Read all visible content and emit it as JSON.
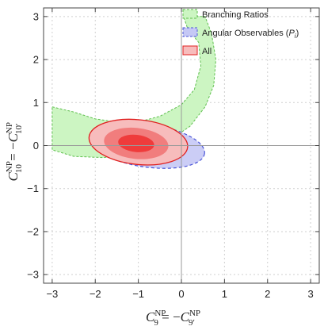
{
  "chart_data": {
    "type": "area",
    "title": "",
    "xlim": [
      -3.2,
      3.2
    ],
    "ylim": [
      -3.2,
      3.2
    ],
    "xticks": [
      -3,
      -2,
      -1,
      0,
      1,
      2,
      3
    ],
    "yticks": [
      -3,
      -2,
      -1,
      0,
      1,
      2,
      3
    ],
    "xtick_labels": [
      "−3",
      "−2",
      "−1",
      "0",
      "1",
      "2",
      "3"
    ],
    "ytick_labels": [
      "−3",
      "−2",
      "−1",
      "0",
      "1",
      "2",
      "3"
    ],
    "grid": true,
    "legend_position": "top-right",
    "xlabel": {
      "main": "C",
      "sub": "9",
      "sup": "NP",
      "eq": " = −",
      "main2": "C",
      "sub2": "9′",
      "sup2": "NP"
    },
    "ylabel": {
      "main": "C",
      "sub": "10",
      "sup": "NP",
      "eq": " = −",
      "main2": "C",
      "sub2": "10′",
      "sup2": "NP"
    },
    "series": [
      {
        "name": "Branching Ratios",
        "fill": "#ccf5c2",
        "stroke": "#5fbf4f",
        "dashed": true,
        "region": [
          [
            -3.0,
            0.9
          ],
          [
            -2.5,
            0.78
          ],
          [
            -2.0,
            0.62
          ],
          [
            -1.5,
            0.55
          ],
          [
            -1.0,
            0.55
          ],
          [
            -0.5,
            0.68
          ],
          [
            0.0,
            0.95
          ],
          [
            0.3,
            1.3
          ],
          [
            0.45,
            1.85
          ],
          [
            0.4,
            2.4
          ],
          [
            0.15,
            2.7
          ],
          [
            0.05,
            3.0
          ],
          [
            0.55,
            3.0
          ],
          [
            0.7,
            2.6
          ],
          [
            0.8,
            2.0
          ],
          [
            0.75,
            1.4
          ],
          [
            0.55,
            0.9
          ],
          [
            0.2,
            0.45
          ],
          [
            -0.3,
            0.1
          ],
          [
            -1.0,
            -0.15
          ],
          [
            -1.8,
            -0.28
          ],
          [
            -2.5,
            -0.25
          ],
          [
            -3.0,
            -0.1
          ]
        ]
      },
      {
        "name": "Angular Observables (P_i)",
        "legend_main": "Angular Observables (",
        "legend_italic": "P",
        "legend_sub": "i",
        "legend_close": ")",
        "fill": "#c5c8f5",
        "stroke": "#4b55d8",
        "dashed": true,
        "ellipse": {
          "cx": -0.8,
          "cy": 0.0,
          "rx": 1.35,
          "ry": 0.5,
          "angle": -8
        }
      },
      {
        "name": "All",
        "fill": "#f5b3b3",
        "stroke": "#e02020",
        "dashed": false,
        "contours": [
          {
            "cx": -1.0,
            "cy": 0.08,
            "rx": 1.15,
            "ry": 0.52,
            "angle": -6,
            "fill": "#f7bcbc"
          },
          {
            "cx": -1.05,
            "cy": 0.05,
            "rx": 0.75,
            "ry": 0.36,
            "angle": -6,
            "fill": "#f17d7d"
          },
          {
            "cx": -1.05,
            "cy": 0.05,
            "rx": 0.42,
            "ry": 0.2,
            "angle": -6,
            "fill": "#ef3b3b"
          }
        ]
      }
    ]
  }
}
